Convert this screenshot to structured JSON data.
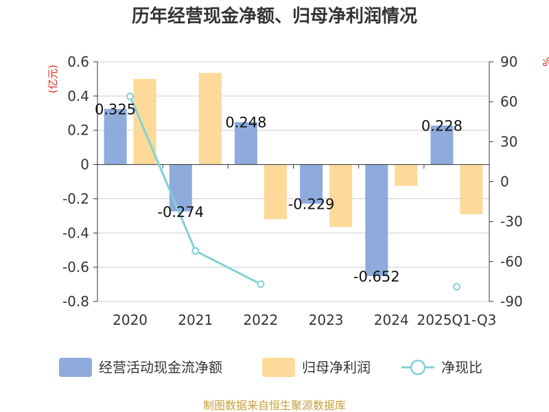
{
  "title": "历年经营现金净额、归母净利润情况",
  "source": "制图数据来自恒生聚源数据库",
  "colors": {
    "cash": "#8eabdb",
    "profit": "#fdd99a",
    "ratio": "#7fd1d6",
    "unit": "#e0261f"
  },
  "chart_data": {
    "type": "bar",
    "title": "历年经营现金净额、归母净利润情况",
    "categories": [
      "2020",
      "2021",
      "2022",
      "2023",
      "2024",
      "2025Q1-Q3"
    ],
    "series": [
      {
        "name": "经营活动现金流净额",
        "type": "bar",
        "axis": "left",
        "values": [
          0.325,
          -0.274,
          0.248,
          -0.229,
          -0.652,
          0.228
        ],
        "labels": [
          "0.325",
          "-0.274",
          "0.248",
          "-0.229",
          "-0.652",
          "0.228"
        ]
      },
      {
        "name": "归母净利润",
        "type": "bar",
        "axis": "left",
        "values": [
          0.5,
          0.535,
          -0.32,
          -0.365,
          -0.125,
          -0.29
        ]
      },
      {
        "name": "净现比",
        "type": "line",
        "axis": "right",
        "values": [
          64,
          -52,
          -77,
          null,
          null,
          -79
        ]
      }
    ],
    "y_left": {
      "label": "(亿元)",
      "ylim": [
        -0.8,
        0.6
      ],
      "ticks": [
        "0.6",
        "0.4",
        "0.2",
        "0",
        "-0.2",
        "-0.4",
        "-0.6",
        "-0.8"
      ]
    },
    "y_right": {
      "label": "%",
      "ylim": [
        -90,
        90
      ],
      "ticks": [
        "90",
        "60",
        "30",
        "0",
        "-30",
        "-60",
        "-90"
      ]
    },
    "grid": true,
    "legend": "bottom"
  }
}
